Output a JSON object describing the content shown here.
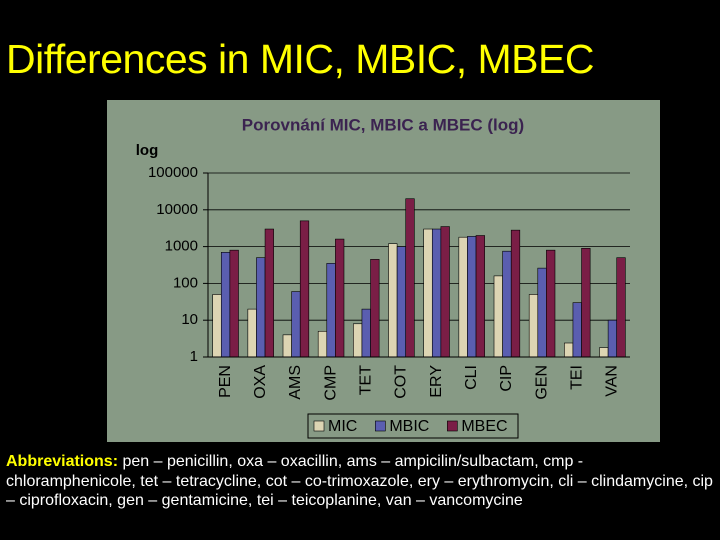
{
  "title": "Differences in MIC, MBIC, MBEC",
  "chart_data": {
    "type": "bar",
    "title": "Porovnání MIC, MBIC a MBEC (log)",
    "y_label": "log",
    "categories": [
      "PEN",
      "OXA",
      "AMS",
      "CMP",
      "TET",
      "COT",
      "ERY",
      "CLI",
      "CIP",
      "GEN",
      "TEI",
      "VAN"
    ],
    "series": [
      {
        "name": "MIC",
        "color": "#ddd5b3",
        "values": [
          50,
          20,
          4,
          5,
          8,
          1200,
          3000,
          1800,
          160,
          50,
          2.4,
          1.8
        ]
      },
      {
        "name": "MBIC",
        "color": "#5a5eb0",
        "values": [
          700,
          500,
          60,
          350,
          20,
          1000,
          3000,
          1900,
          750,
          260,
          30,
          10
        ]
      },
      {
        "name": "MBEC",
        "color": "#7a1e46",
        "values": [
          800,
          3000,
          5000,
          1600,
          450,
          20000,
          3500,
          2000,
          2800,
          800,
          900,
          500
        ]
      }
    ],
    "ylim": [
      1,
      100000
    ],
    "yticks": [
      1,
      10,
      100,
      1000,
      10000,
      100000
    ],
    "log_scale": true,
    "grid": true,
    "legend": "bottom"
  },
  "abbreviations": {
    "label": "Abbreviations:",
    "text": "pen – penicillin, oxa – oxacillin, ams – ampicilin/sulbactam, cmp - chloramphenicole, tet – tetracycline, cot – co-trimoxazole, ery – erythromycin, cli – clindamycine, cip – ciprofloxacin, gen – gentamicine, tei – teicoplanine, van – vancomycine"
  }
}
